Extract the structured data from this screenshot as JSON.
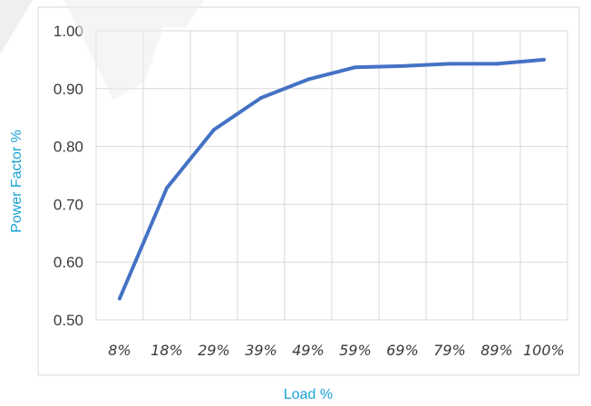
{
  "chart_data": {
    "type": "line",
    "title": "",
    "xlabel": "Load %",
    "ylabel": "Power Factor %",
    "categories": [
      "8%",
      "18%",
      "29%",
      "39%",
      "49%",
      "59%",
      "69%",
      "79%",
      "89%",
      "100%"
    ],
    "series": [
      {
        "values": [
          0.537,
          0.728,
          0.829,
          0.884,
          0.916,
          0.937,
          0.939,
          0.943,
          0.943,
          0.95
        ]
      }
    ],
    "ylim": [
      0.5,
      1.0
    ],
    "yticks": [
      "0.50",
      "0.60",
      "0.70",
      "0.80",
      "0.90",
      "1.00"
    ],
    "grid": true,
    "legend": "none",
    "line_color": "#4472c4",
    "axis_title_color": "#19a2d6"
  }
}
